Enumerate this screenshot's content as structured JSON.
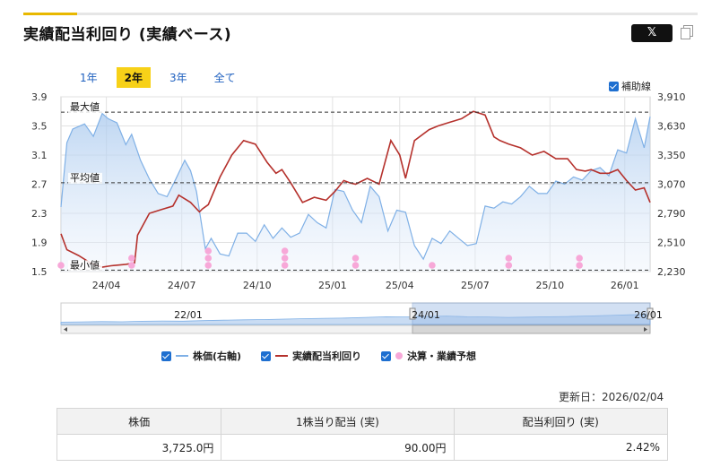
{
  "title": "実績配当利回り (実績ベース)",
  "share_button": "𝕏",
  "tabs": [
    "1年",
    "2年",
    "3年",
    "全て"
  ],
  "active_tab": "2年",
  "aux_line_label": "補助線",
  "colors": {
    "price": "#7fb0e6",
    "yield": "#b5312c",
    "events": "#f7a8d8",
    "accent": "#f7d118",
    "check": "#1e6fd0"
  },
  "chart_data": {
    "type": "line",
    "x_ticks": [
      "24/04",
      "24/07",
      "24/10",
      "25/01",
      "25/04",
      "25/07",
      "25/10",
      "26/01"
    ],
    "y_left": {
      "ticks": [
        "3.9",
        "3.5",
        "3.1",
        "2.7",
        "2.3",
        "1.9",
        "1.5"
      ],
      "ylim": [
        1.5,
        3.9
      ]
    },
    "y_right": {
      "ticks": [
        "3,910",
        "3,630",
        "3,350",
        "3,070",
        "2,790",
        "2,510",
        "2,230"
      ],
      "ylim": [
        2230,
        3910
      ]
    },
    "reference_lines": [
      {
        "label": "最大値",
        "value": 3.69
      },
      {
        "label": "平均値",
        "value": 2.72
      },
      {
        "label": "最小値",
        "value": 1.52
      }
    ],
    "series": [
      {
        "name": "株価(右軸)",
        "axis": "right",
        "x": [
          0.0,
          0.01,
          0.02,
          0.04,
          0.055,
          0.07,
          0.08,
          0.095,
          0.11,
          0.12,
          0.135,
          0.15,
          0.165,
          0.18,
          0.195,
          0.21,
          0.22,
          0.23,
          0.245,
          0.255,
          0.27,
          0.285,
          0.3,
          0.315,
          0.33,
          0.345,
          0.36,
          0.375,
          0.39,
          0.405,
          0.42,
          0.435,
          0.45,
          0.465,
          0.48,
          0.495,
          0.51,
          0.525,
          0.54,
          0.555,
          0.57,
          0.585,
          0.6,
          0.615,
          0.63,
          0.645,
          0.66,
          0.675,
          0.69,
          0.705,
          0.72,
          0.735,
          0.75,
          0.765,
          0.78,
          0.795,
          0.81,
          0.825,
          0.84,
          0.855,
          0.87,
          0.885,
          0.9,
          0.915,
          0.93,
          0.945,
          0.96,
          0.975,
          0.99,
          1.0
        ],
        "y": [
          2850,
          3470,
          3600,
          3650,
          3530,
          3750,
          3700,
          3660,
          3450,
          3550,
          3300,
          3120,
          2980,
          2950,
          3120,
          3300,
          3200,
          3000,
          2450,
          2550,
          2400,
          2380,
          2600,
          2600,
          2520,
          2680,
          2550,
          2650,
          2560,
          2600,
          2780,
          2700,
          2650,
          3020,
          3000,
          2820,
          2700,
          3050,
          2950,
          2620,
          2820,
          2800,
          2480,
          2350,
          2550,
          2500,
          2620,
          2550,
          2480,
          2500,
          2860,
          2840,
          2900,
          2880,
          2950,
          3050,
          2980,
          2980,
          3100,
          3070,
          3140,
          3110,
          3200,
          3230,
          3150,
          3400,
          3370,
          3700,
          3420,
          3720
        ]
      },
      {
        "name": "実績配当利回り",
        "axis": "left",
        "x": [
          0.0,
          0.01,
          0.03,
          0.05,
          0.07,
          0.085,
          0.11,
          0.125,
          0.13,
          0.15,
          0.17,
          0.19,
          0.2,
          0.22,
          0.235,
          0.24,
          0.25,
          0.27,
          0.29,
          0.31,
          0.33,
          0.35,
          0.365,
          0.375,
          0.39,
          0.41,
          0.43,
          0.45,
          0.465,
          0.48,
          0.49,
          0.5,
          0.52,
          0.54,
          0.56,
          0.575,
          0.585,
          0.6,
          0.625,
          0.64,
          0.66,
          0.68,
          0.7,
          0.72,
          0.735,
          0.745,
          0.76,
          0.78,
          0.8,
          0.82,
          0.84,
          0.86,
          0.875,
          0.89,
          0.9,
          0.915,
          0.93,
          0.945,
          0.96,
          0.975,
          0.99,
          1.0
        ],
        "y": [
          2.02,
          1.8,
          1.72,
          1.62,
          1.56,
          1.58,
          1.6,
          1.62,
          2.0,
          2.3,
          2.35,
          2.4,
          2.55,
          2.45,
          2.32,
          2.36,
          2.42,
          2.8,
          3.1,
          3.3,
          3.25,
          3.0,
          2.85,
          2.9,
          2.72,
          2.45,
          2.52,
          2.48,
          2.6,
          2.75,
          2.72,
          2.7,
          2.78,
          2.7,
          3.3,
          3.1,
          2.78,
          3.3,
          3.45,
          3.5,
          3.55,
          3.6,
          3.7,
          3.65,
          3.35,
          3.3,
          3.25,
          3.2,
          3.1,
          3.15,
          3.05,
          3.05,
          2.9,
          2.88,
          2.9,
          2.85,
          2.85,
          2.9,
          2.75,
          2.62,
          2.65,
          2.45
        ]
      }
    ],
    "event_markers": {
      "name": "決算・業績予想",
      "x": [
        0.0,
        0.12,
        0.25,
        0.38,
        0.5,
        0.63,
        0.76,
        0.88
      ],
      "counts": [
        1,
        2,
        3,
        3,
        2,
        1,
        2,
        2
      ]
    },
    "navigator": {
      "labels": [
        "22/01",
        "24/01",
        "26/01"
      ]
    }
  },
  "legend": {
    "price": "株価(右軸)",
    "yield": "実績配当利回り",
    "events": "決算・業績予想"
  },
  "updated": "更新日：2026/02/04",
  "table": {
    "headers": [
      "株価",
      "1株当り配当 (実)",
      "配当利回り (実)"
    ],
    "values": [
      "3,725.0円",
      "90.00円",
      "2.42%"
    ]
  }
}
